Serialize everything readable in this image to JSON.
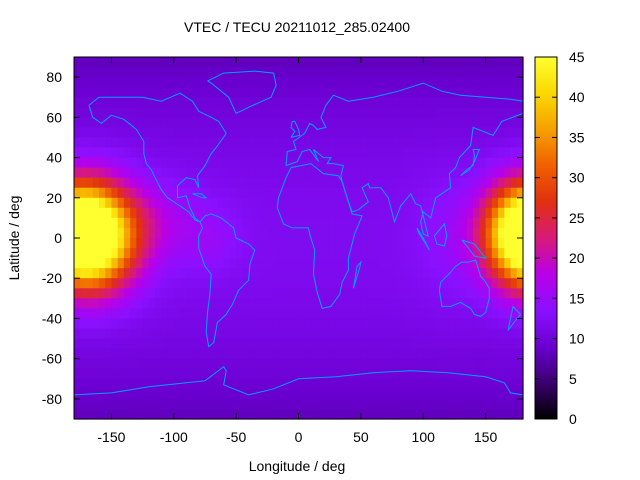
{
  "chart_data": {
    "type": "heatmap",
    "title": "VTEC / TECU 20211012_285.02400",
    "xlabel": "Longitude / deg",
    "ylabel": "Latitude / deg",
    "xlim": [
      -180,
      180
    ],
    "ylim": [
      -90,
      90
    ],
    "xticks": [
      -150,
      -100,
      -50,
      0,
      50,
      100,
      150
    ],
    "yticks": [
      -80,
      -60,
      -40,
      -20,
      0,
      20,
      40,
      60,
      80
    ],
    "colorbar": {
      "range": [
        0,
        45
      ],
      "ticks": [
        0,
        5,
        10,
        15,
        20,
        25,
        30,
        35,
        40,
        45
      ],
      "palette": [
        "#000000",
        "#3a006e",
        "#6a00d0",
        "#8a10ff",
        "#b800e8",
        "#d81a78",
        "#e03010",
        "#f06000",
        "#f6a000",
        "#fbd800",
        "#ffff30"
      ]
    },
    "overlay": "coastlines",
    "overlay_color": "#00a0ff",
    "grid_step_deg": 5,
    "features": [
      {
        "lon": -165,
        "lat": 0,
        "peak": 45,
        "lon_spread": 25,
        "lat_spread": 18
      },
      {
        "lon": -115,
        "lat": 8,
        "peak": 16,
        "lon_spread": 30,
        "lat_spread": 14
      },
      {
        "lon": -70,
        "lat": -2,
        "peak": 14,
        "lon_spread": 18,
        "lat_spread": 12
      },
      {
        "lon": 180,
        "lat": 3,
        "peak": 37,
        "lon_spread": 22,
        "lat_spread": 16
      },
      {
        "lon": 120,
        "lat": 0,
        "peak": 14,
        "lon_spread": 20,
        "lat_spread": 22
      }
    ],
    "background_tec": 12
  }
}
